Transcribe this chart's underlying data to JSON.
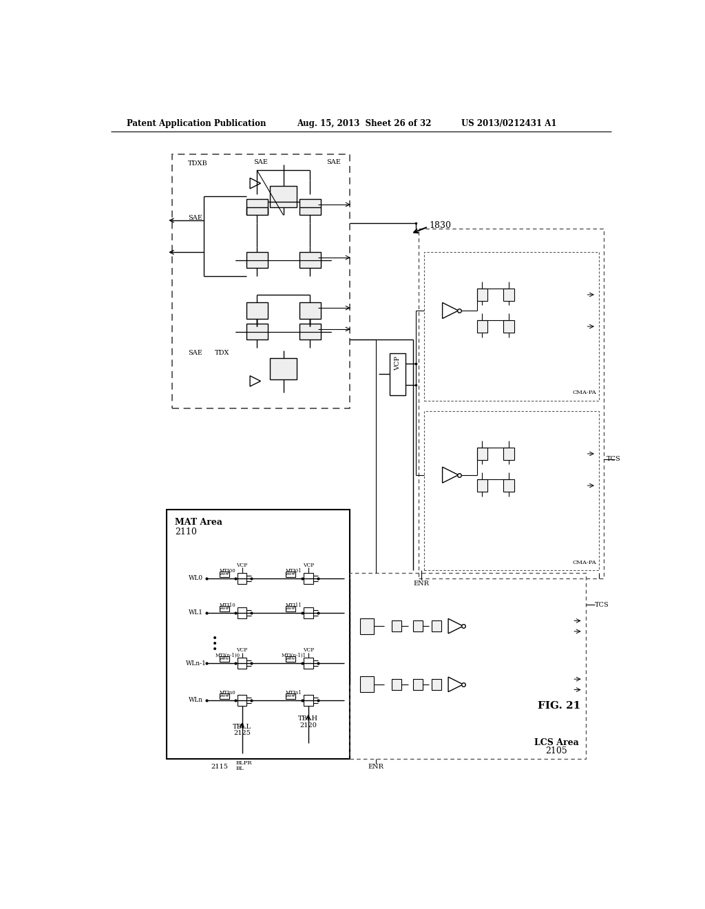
{
  "header_left": "Patent Application Publication",
  "header_mid": "Aug. 15, 2013  Sheet 26 of 32",
  "header_right": "US 2013/0212431 A1",
  "figure_label": "FIG. 21",
  "bg_color": "#ffffff",
  "text_color": "#000000",
  "line_color": "#000000",
  "gray_color": "#888888"
}
